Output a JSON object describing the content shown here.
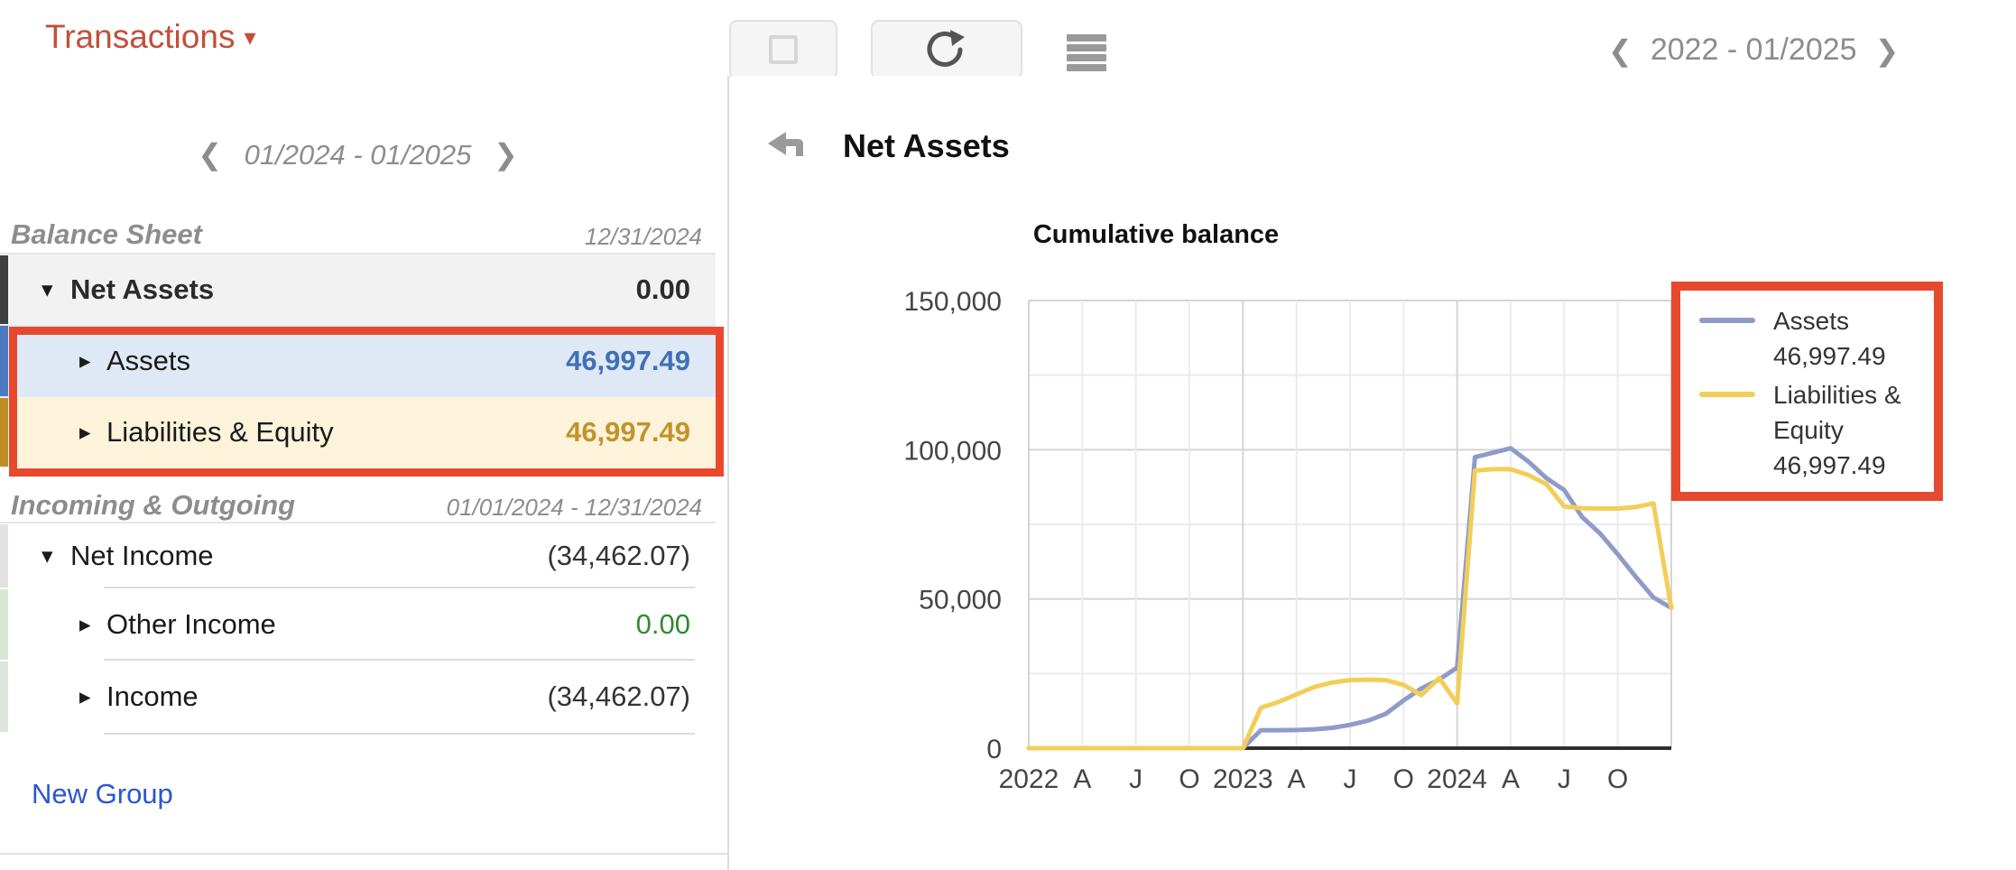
{
  "header": {
    "menu_label": "Transactions",
    "menu_caret": "▾",
    "icons": [
      "square-icon",
      "refresh-icon",
      "hamburger-icon"
    ],
    "period": {
      "prev": "❮",
      "label": "2022 - 01/2025",
      "next": "❯"
    }
  },
  "sidebar": {
    "nav": {
      "prev": "❮",
      "label": "01/2024 - 01/2025",
      "next": "❯"
    },
    "sections": [
      {
        "title": "Balance Sheet",
        "date": "12/31/2024",
        "rows": [
          {
            "caret": "▾",
            "label": "Net Assets",
            "value": "0.00"
          },
          {
            "caret": "▸",
            "label": "Assets",
            "value": "46,997.49"
          },
          {
            "caret": "▸",
            "label": "Liabilities & Equity",
            "value": "46,997.49"
          }
        ]
      },
      {
        "title": "Incoming & Outgoing",
        "date": "01/01/2024 - 12/31/2024",
        "rows": [
          {
            "caret": "▾",
            "label": "Net Income",
            "value": "(34,462.07)"
          },
          {
            "caret": "▸",
            "label": "Other Income",
            "value": "0.00"
          },
          {
            "caret": "▸",
            "label": "Income",
            "value": "(34,462.07)"
          }
        ]
      }
    ],
    "new_group": "New Group"
  },
  "main": {
    "back_icon": "back-arrow-icon",
    "title": "Net Assets"
  },
  "chart_data": {
    "type": "line",
    "title": "Cumulative balance",
    "x_interval": "monthly",
    "x_start": "01/2022",
    "x_end": "01/2025",
    "x_tick_labels": [
      "2022",
      "A",
      "J",
      "O",
      "2023",
      "A",
      "J",
      "O",
      "2024",
      "A",
      "J",
      "O"
    ],
    "y_ticks": [
      0,
      50000,
      100000,
      150000
    ],
    "y_tick_labels": [
      "0",
      "50,000",
      "100,000",
      "150,000"
    ],
    "ylim": [
      0,
      150000
    ],
    "grid": true,
    "legend_position": "right",
    "series": [
      {
        "name": "Assets",
        "color": "#8e9bca",
        "values": [
          0,
          0,
          0,
          0,
          0,
          0,
          0,
          0,
          0,
          0,
          0,
          0,
          0,
          6000,
          6000,
          6100,
          6300,
          6800,
          7800,
          9200,
          11500,
          16000,
          20000,
          23000,
          27000,
          97500,
          99000,
          100500,
          96000,
          90500,
          86500,
          77500,
          72000,
          65000,
          57500,
          50500,
          46997.49
        ]
      },
      {
        "name": "Liabilities & Equity",
        "color": "#f2ce58",
        "values": [
          0,
          0,
          0,
          0,
          0,
          0,
          0,
          0,
          0,
          0,
          0,
          0,
          0,
          13500,
          15500,
          18000,
          20500,
          22000,
          22800,
          23000,
          22800,
          21200,
          17800,
          23500,
          15000,
          93000,
          93500,
          93500,
          91500,
          88500,
          81000,
          80400,
          80300,
          80300,
          80800,
          82000,
          46997.49
        ]
      }
    ],
    "legend": {
      "entries": [
        {
          "label": "Assets",
          "value": "46,997.49"
        },
        {
          "label": "Liabilities & Equity",
          "value": "46,997.49"
        }
      ]
    }
  },
  "annotations": {
    "highlight_color": "#e6492e",
    "boxes": [
      "sidebar-balance-rows",
      "chart-legend"
    ]
  },
  "colors": {
    "header_accent": "#c24f3b",
    "annotation_red": "#e6492e",
    "assets_value_blue": "#3f70b7",
    "liabilities_value_gold": "#c2932b",
    "income_green": "#2e8b30",
    "link_blue": "#2b55d4",
    "line_assets": "#8e9bca",
    "line_liabilities": "#f2ce58",
    "strip_dark": "#3f3f3f",
    "strip_blue": "#4a7ac2",
    "strip_gold": "#bf8d26",
    "row_bg_assets": "#dfe9f6",
    "row_bg_liabilities": "#fcf3da",
    "row_bg_netassets": "#f2f2f2"
  }
}
